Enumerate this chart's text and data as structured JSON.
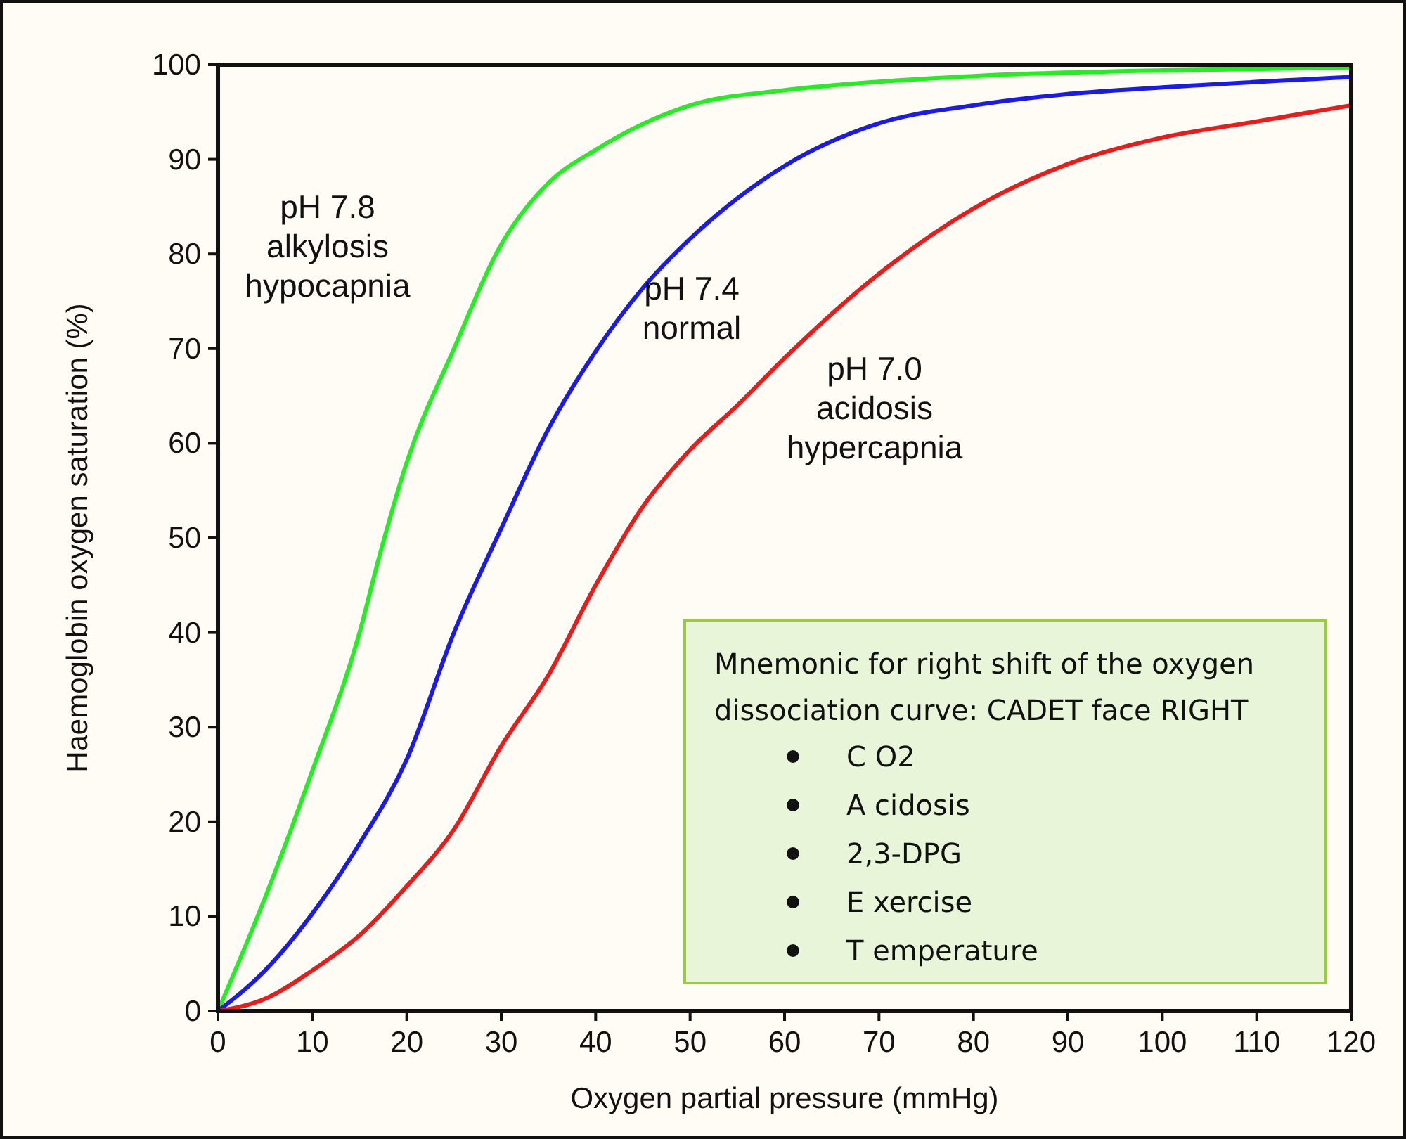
{
  "chart_data": {
    "type": "line",
    "xlabel": "Oxygen partial pressure (mmHg)",
    "ylabel": "Haemoglobin oxygen saturation (%)",
    "xlim": [
      0,
      120
    ],
    "ylim": [
      0,
      100
    ],
    "xticks": [
      0,
      10,
      20,
      30,
      40,
      50,
      60,
      70,
      80,
      90,
      100,
      110,
      120
    ],
    "yticks": [
      0,
      10,
      20,
      30,
      40,
      50,
      60,
      70,
      80,
      90,
      100
    ],
    "grid": false,
    "marker": "none",
    "line_style": "solid",
    "series": [
      {
        "name": "pH 7.8\nalkylosis\nhypocapnia",
        "color": "#22ee22",
        "x": [
          0,
          5,
          10,
          15,
          17,
          20,
          25,
          30,
          35,
          40,
          50,
          60,
          70,
          80,
          100,
          120
        ],
        "values": [
          0,
          12,
          25.4,
          40,
          47.7,
          58,
          70,
          81,
          87.5,
          91,
          95.7,
          97.3,
          98.2,
          98.8,
          99.4,
          99.7
        ]
      },
      {
        "name": "pH 7.4\nnormal",
        "color": "#1a1aee",
        "x": [
          0,
          5,
          10,
          15,
          20,
          25,
          30,
          35,
          40,
          45,
          50,
          60,
          70,
          80,
          90,
          100,
          120
        ],
        "values": [
          0,
          4.3,
          10.3,
          17.7,
          26.6,
          40,
          51,
          61.5,
          69.7,
          76.4,
          81.6,
          89.3,
          93.8,
          95.7,
          96.9,
          97.6,
          98.7
        ]
      },
      {
        "name": "pH 7.0\nacidosis\nhypercapnia",
        "color": "#ee1a1a",
        "x": [
          0,
          5,
          10,
          15,
          20,
          25,
          30,
          35,
          40,
          45,
          50,
          55,
          60,
          70,
          80,
          90,
          100,
          110,
          120
        ],
        "values": [
          0,
          1.3,
          4.3,
          8,
          13.2,
          19.2,
          28,
          35.5,
          45,
          53.3,
          59.3,
          64,
          69,
          77.9,
          84.8,
          89.5,
          92.3,
          94,
          95.7
        ]
      }
    ],
    "annotations": [
      "Mnemonic for right shift of the oxygen",
      "dissociation curve: CADET face RIGHT",
      "C O2",
      "A cidosis",
      "2,3-DPG",
      "E xercise",
      "T emperature"
    ]
  }
}
